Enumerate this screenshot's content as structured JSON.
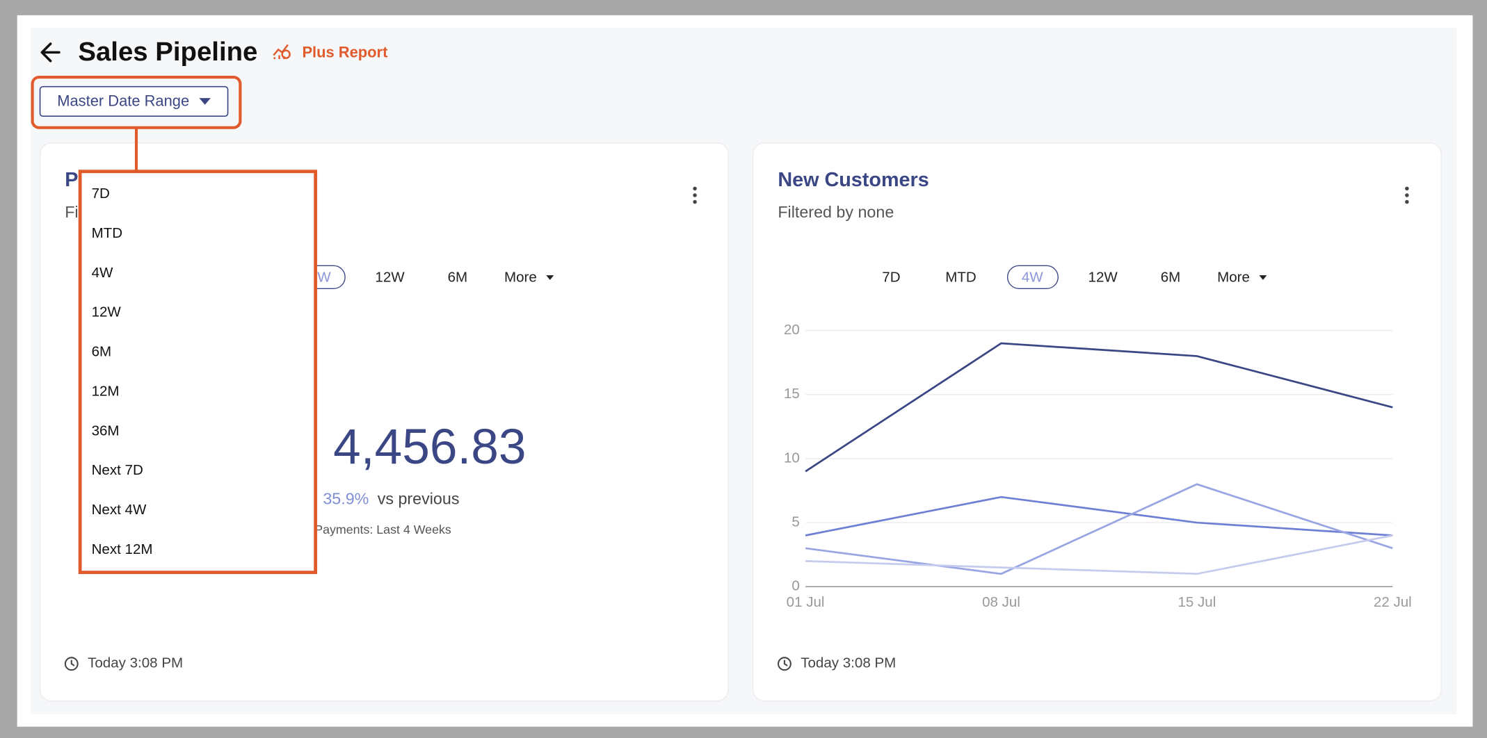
{
  "header": {
    "title": "Sales Pipeline",
    "badge": "Plus Report"
  },
  "date_range_button": "Master Date Range",
  "dropdown": [
    "7D",
    "MTD",
    "4W",
    "12W",
    "6M",
    "12M",
    "36M",
    "Next 7D",
    "Next 4W",
    "Next 12M"
  ],
  "left_card": {
    "title": "P",
    "subtitle": "Fi",
    "tabs": [
      "W",
      "12W",
      "6M",
      "More"
    ],
    "total": "4,456.83",
    "change": "35.9%",
    "change_note": "vs previous",
    "caption": "Payments: Last 4 Weeks",
    "timestamp": "Today 3:08 PM"
  },
  "right_card": {
    "subtitle": "Filtered by none",
    "tabs": [
      "7D",
      "MTD",
      "4W",
      "12W",
      "6M",
      "More"
    ],
    "timestamp": "Today 3:08 PM"
  },
  "chart_data": {
    "type": "line",
    "title": "New Customers",
    "categories": [
      "01 Jul",
      "08 Jul",
      "15 Jul",
      "22 Jul"
    ],
    "series": [
      {
        "color": "#3b4785",
        "values": [
          9,
          19,
          18,
          14
        ]
      },
      {
        "color": "#6f80d4",
        "values": [
          4,
          7,
          5,
          4
        ]
      },
      {
        "color": "#98a5e2",
        "values": [
          3,
          1,
          8,
          3
        ]
      },
      {
        "color": "#c4cbef",
        "values": [
          2,
          1.5,
          1,
          4
        ]
      }
    ],
    "ylim": [
      0,
      20
    ],
    "yticks": [
      0,
      5,
      10,
      15,
      20
    ],
    "grid": true
  }
}
